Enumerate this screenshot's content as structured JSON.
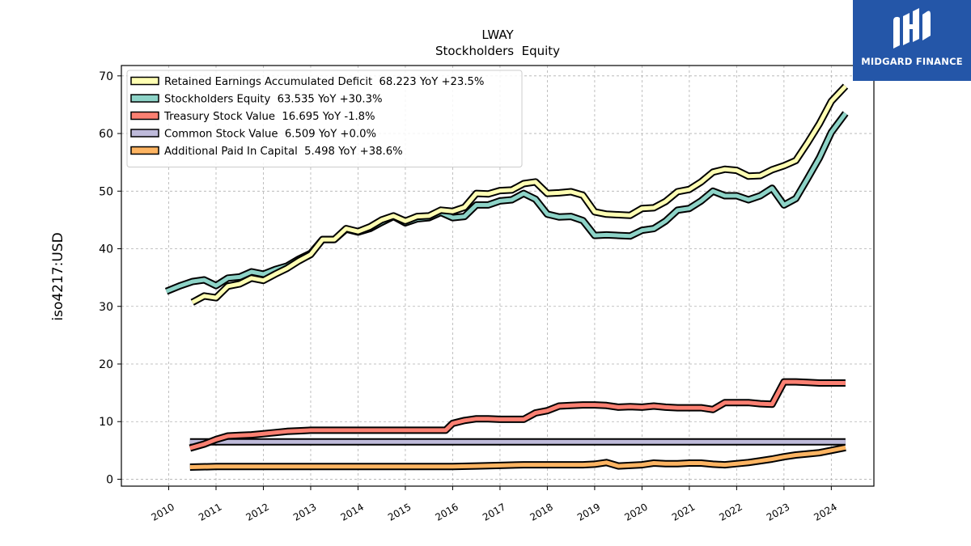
{
  "chart_data": {
    "type": "line",
    "title": "LWAY",
    "subtitle": "Stockholders  Equity",
    "xlabel": "",
    "ylabel": "iso4217:USD",
    "xlim": [
      2009.0,
      2024.9
    ],
    "ylim": [
      -1.2,
      71.8
    ],
    "x_ticks": [
      "2010",
      "2011",
      "2012",
      "2013",
      "2014",
      "2015",
      "2016",
      "2017",
      "2018",
      "2019",
      "2020",
      "2021",
      "2022",
      "2023",
      "2024"
    ],
    "y_ticks": [
      0,
      10,
      20,
      30,
      40,
      50,
      60,
      70
    ],
    "grid": true,
    "legend_position": "top-left",
    "series": [
      {
        "name": "Retained Earnings Accumulated Deficit",
        "legend": "Retained Earnings Accumulated Deficit  68.223 YoY +23.5%",
        "color": "#ffffb3",
        "x": [
          2010.5,
          2010.75,
          2011.0,
          2011.25,
          2011.5,
          2011.75,
          2012.0,
          2012.25,
          2012.5,
          2012.75,
          2013.0,
          2013.25,
          2013.5,
          2013.75,
          2014.0,
          2014.25,
          2014.5,
          2014.75,
          2015.0,
          2015.25,
          2015.5,
          2015.75,
          2016.0,
          2016.25,
          2016.5,
          2016.75,
          2017.0,
          2017.25,
          2017.5,
          2017.75,
          2018.0,
          2018.25,
          2018.5,
          2018.75,
          2019.0,
          2019.25,
          2019.5,
          2019.75,
          2020.0,
          2020.25,
          2020.5,
          2020.75,
          2021.0,
          2021.25,
          2021.5,
          2021.75,
          2022.0,
          2022.25,
          2022.5,
          2022.75,
          2023.0,
          2023.25,
          2023.5,
          2023.75,
          2024.0,
          2024.3
        ],
        "values": [
          30.7,
          31.8,
          31.5,
          33.5,
          33.9,
          34.9,
          34.5,
          35.6,
          36.6,
          37.9,
          39.0,
          41.6,
          41.6,
          43.5,
          43.0,
          43.8,
          45.0,
          45.7,
          44.8,
          45.6,
          45.7,
          46.7,
          46.5,
          47.2,
          49.6,
          49.5,
          50.1,
          50.2,
          51.3,
          51.6,
          49.6,
          49.7,
          49.9,
          49.3,
          46.4,
          46.0,
          45.9,
          45.8,
          47.0,
          47.1,
          48.2,
          49.9,
          50.3,
          51.6,
          53.3,
          53.8,
          53.6,
          52.6,
          52.7,
          53.7,
          54.4,
          55.3,
          58.4,
          61.7,
          65.6,
          68.2
        ]
      },
      {
        "name": "Stockholders Equity",
        "legend": "Stockholders Equity  63.535 YoY +30.3%",
        "color": "#8dd3c7",
        "x": [
          2009.95,
          2010.25,
          2010.5,
          2010.75,
          2011.0,
          2011.25,
          2011.5,
          2011.75,
          2012.0,
          2012.25,
          2012.5,
          2012.75,
          2013.0,
          2013.25,
          2013.5,
          2013.75,
          2014.0,
          2014.25,
          2014.5,
          2014.75,
          2015.0,
          2015.25,
          2015.5,
          2015.75,
          2016.0,
          2016.25,
          2016.5,
          2016.75,
          2017.0,
          2017.25,
          2017.5,
          2017.75,
          2018.0,
          2018.25,
          2018.5,
          2018.75,
          2019.0,
          2019.25,
          2019.5,
          2019.75,
          2020.0,
          2020.25,
          2020.5,
          2020.75,
          2021.0,
          2021.25,
          2021.5,
          2021.75,
          2022.0,
          2022.25,
          2022.5,
          2022.75,
          2023.0,
          2023.25,
          2023.5,
          2023.75,
          2024.0,
          2024.3
        ],
        "values": [
          32.6,
          33.6,
          34.3,
          34.6,
          33.6,
          34.9,
          35.1,
          36.0,
          35.6,
          36.4,
          37.0,
          38.2,
          39.2,
          41.6,
          41.6,
          43.4,
          42.9,
          43.5,
          44.6,
          45.6,
          44.5,
          45.2,
          45.4,
          46.3,
          45.4,
          45.6,
          47.6,
          47.6,
          48.3,
          48.5,
          49.6,
          48.6,
          46.0,
          45.5,
          45.6,
          44.9,
          42.3,
          42.4,
          42.3,
          42.2,
          43.2,
          43.5,
          44.8,
          46.7,
          47.0,
          48.3,
          50.0,
          49.2,
          49.2,
          48.5,
          49.2,
          50.5,
          47.6,
          48.7,
          52.2,
          55.8,
          60.2,
          63.5
        ]
      },
      {
        "name": "Treasury Stock Value",
        "legend": "Treasury Stock Value  16.695 YoY -1.8%",
        "color": "#fb8072",
        "x": [
          2010.45,
          2010.75,
          2011.0,
          2011.25,
          2011.5,
          2011.75,
          2012.0,
          2012.25,
          2012.5,
          2012.75,
          2013.0,
          2013.5,
          2014.0,
          2014.5,
          2015.0,
          2015.5,
          2015.85,
          2016.0,
          2016.25,
          2016.5,
          2016.75,
          2017.0,
          2017.25,
          2017.5,
          2017.75,
          2018.0,
          2018.25,
          2018.5,
          2018.75,
          2019.0,
          2019.25,
          2019.5,
          2019.75,
          2020.0,
          2020.25,
          2020.5,
          2020.75,
          2021.0,
          2021.25,
          2021.5,
          2021.75,
          2022.0,
          2022.25,
          2022.5,
          2022.75,
          2023.0,
          2023.25,
          2023.5,
          2023.75,
          2024.0,
          2024.3
        ],
        "values": [
          5.4,
          6.1,
          6.9,
          7.5,
          7.6,
          7.7,
          7.9,
          8.1,
          8.3,
          8.4,
          8.5,
          8.5,
          8.5,
          8.5,
          8.5,
          8.5,
          8.5,
          9.7,
          10.2,
          10.5,
          10.5,
          10.4,
          10.4,
          10.4,
          11.5,
          11.9,
          12.7,
          12.8,
          12.9,
          12.9,
          12.8,
          12.5,
          12.6,
          12.5,
          12.7,
          12.5,
          12.4,
          12.4,
          12.4,
          12.1,
          13.3,
          13.3,
          13.3,
          13.1,
          13.0,
          16.9,
          16.9,
          16.8,
          16.7,
          16.7,
          16.7
        ]
      },
      {
        "name": "Common Stock Value",
        "legend": "Common Stock Value  6.509 YoY +0.0%",
        "color": "#bebada",
        "x": [
          2010.45,
          2024.3
        ],
        "values": [
          6.5,
          6.5
        ]
      },
      {
        "name": "Additional Paid In Capital",
        "legend": "Additional Paid In Capital  5.498 YoY +38.6%",
        "color": "#fdb462",
        "x": [
          2010.45,
          2011.0,
          2012.0,
          2013.0,
          2014.0,
          2015.0,
          2016.0,
          2016.5,
          2017.0,
          2017.5,
          2018.0,
          2018.5,
          2018.75,
          2019.0,
          2019.25,
          2019.5,
          2019.75,
          2020.0,
          2020.25,
          2020.5,
          2020.75,
          2021.0,
          2021.25,
          2021.5,
          2021.75,
          2022.0,
          2022.25,
          2022.5,
          2022.75,
          2023.0,
          2023.25,
          2023.5,
          2023.75,
          2024.0,
          2024.3
        ],
        "values": [
          2.1,
          2.2,
          2.2,
          2.2,
          2.2,
          2.2,
          2.2,
          2.3,
          2.4,
          2.5,
          2.5,
          2.5,
          2.5,
          2.6,
          2.9,
          2.3,
          2.4,
          2.5,
          2.8,
          2.7,
          2.7,
          2.8,
          2.8,
          2.6,
          2.5,
          2.7,
          2.9,
          3.2,
          3.5,
          3.9,
          4.2,
          4.4,
          4.6,
          5.0,
          5.5
        ]
      }
    ]
  },
  "brand": {
    "name": "MIDGARD FINANCE",
    "color": "#2456a8"
  }
}
